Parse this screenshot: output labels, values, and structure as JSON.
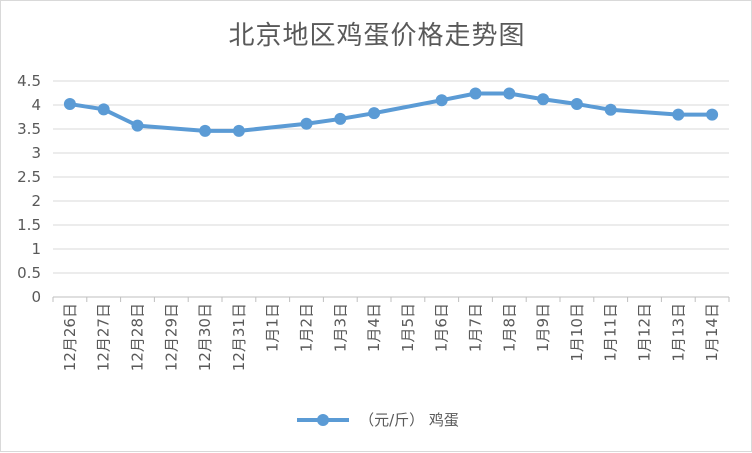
{
  "chart_data": {
    "type": "line",
    "title": "北京地区鸡蛋价格走势图",
    "categories": [
      "12月26日",
      "12月27日",
      "12月28日",
      "12月29日",
      "12月30日",
      "12月31日",
      "1月1日",
      "1月2日",
      "1月3日",
      "1月4日",
      "1月5日",
      "1月6日",
      "1月7日",
      "1月8日",
      "1月9日",
      "1月10日",
      "1月11日",
      "1月12日",
      "1月13日",
      "1月14日"
    ],
    "series": [
      {
        "name": "（元/斤） 鸡蛋",
        "values": [
          4.02,
          3.91,
          3.57,
          null,
          3.46,
          3.46,
          null,
          3.61,
          3.71,
          3.83,
          null,
          4.1,
          4.24,
          4.24,
          4.12,
          4.02,
          3.9,
          null,
          3.8,
          3.8
        ],
        "color": "#5b9bd5"
      }
    ],
    "yticks": [
      "0",
      "0.5",
      "1",
      "1.5",
      "2",
      "2.5",
      "3",
      "3.5",
      "4",
      "4.5"
    ],
    "ylim": [
      0,
      4.5
    ],
    "grid": true,
    "legend": "bottom"
  }
}
